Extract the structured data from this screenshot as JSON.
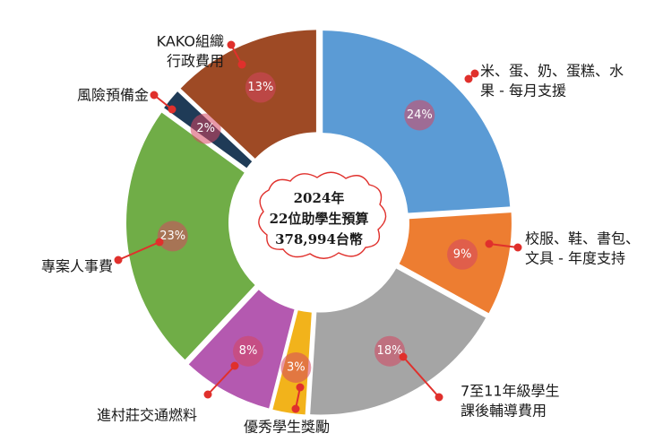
{
  "chart_data": {
    "type": "pie",
    "center_text": [
      "2024年",
      "22位助學生預算",
      "378,994台幣"
    ],
    "slices": [
      {
        "label": [
          "米、蛋、奶、蛋糕、水",
          "果 - 每月支援"
        ],
        "value": 24,
        "pct_label": "24%",
        "color": "#5b9bd5"
      },
      {
        "label": [
          "校服、鞋、書包、",
          "文具 - 年度支持"
        ],
        "value": 9,
        "pct_label": "9%",
        "color": "#ed7d31"
      },
      {
        "label": [
          "7至11年級學生",
          "課後輔導費用"
        ],
        "value": 18,
        "pct_label": "18%",
        "color": "#a5a5a5"
      },
      {
        "label": [
          "優秀學生獎勵"
        ],
        "value": 3,
        "pct_label": "3%",
        "color": "#f2b31b"
      },
      {
        "label": [
          "進村莊交通燃料"
        ],
        "value": 8,
        "pct_label": "8%",
        "color": "#b459b0"
      },
      {
        "label": [
          "專案人事費"
        ],
        "value": 23,
        "pct_label": "23%",
        "color": "#70ad47"
      },
      {
        "label": [
          "風險預備金"
        ],
        "value": 2,
        "pct_label": "2%",
        "color": "#1f3b57"
      },
      {
        "label": [
          "KAKO組織",
          "行政費用"
        ],
        "value": 13,
        "pct_label": "13%",
        "color": "#9e4a25"
      }
    ]
  }
}
